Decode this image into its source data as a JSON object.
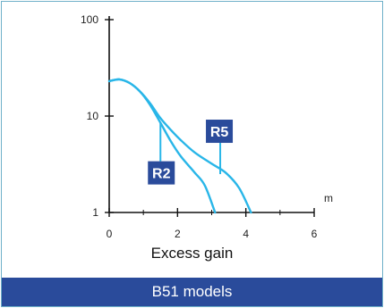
{
  "caption": "Excess gain",
  "footer": "B51 models",
  "colors": {
    "curve": "#29b6e8",
    "label_bg": "#2a4b9b",
    "footer_bg": "#2a4b9b",
    "border": "#6fb0c9"
  },
  "chart_data": {
    "type": "line",
    "xlabel": "Excess gain",
    "x_unit_label": "m",
    "y_scale": "log",
    "xlim": [
      0,
      6
    ],
    "ylim": [
      1,
      100
    ],
    "x_ticks": [
      "0",
      "2",
      "4",
      "6"
    ],
    "y_ticks": [
      "1",
      "10",
      "100"
    ],
    "series": [
      {
        "name": "R2",
        "points": [
          [
            0,
            23
          ],
          [
            0.3,
            24
          ],
          [
            0.6,
            22
          ],
          [
            0.9,
            18
          ],
          [
            1.2,
            13
          ],
          [
            1.5,
            8.5
          ],
          [
            1.8,
            5.5
          ],
          [
            2.1,
            3.8
          ],
          [
            2.5,
            2.6
          ],
          [
            2.8,
            1.9
          ],
          [
            3.1,
            1
          ]
        ]
      },
      {
        "name": "R5",
        "points": [
          [
            0,
            23
          ],
          [
            0.3,
            24
          ],
          [
            0.6,
            22
          ],
          [
            0.9,
            18
          ],
          [
            1.2,
            13.5
          ],
          [
            1.5,
            9.5
          ],
          [
            1.8,
            7.2
          ],
          [
            2.1,
            5.6
          ],
          [
            2.5,
            4.2
          ],
          [
            3.0,
            3.2
          ],
          [
            3.4,
            2.6
          ],
          [
            3.8,
            1.8
          ],
          [
            4.15,
            1
          ]
        ]
      }
    ],
    "labels": [
      {
        "text": "R2",
        "series": "R2",
        "anchor_x": 1.5,
        "anchor_y": 8.5
      },
      {
        "text": "R5",
        "series": "R5",
        "anchor_x": 3.25,
        "anchor_y": 2.5
      }
    ]
  }
}
